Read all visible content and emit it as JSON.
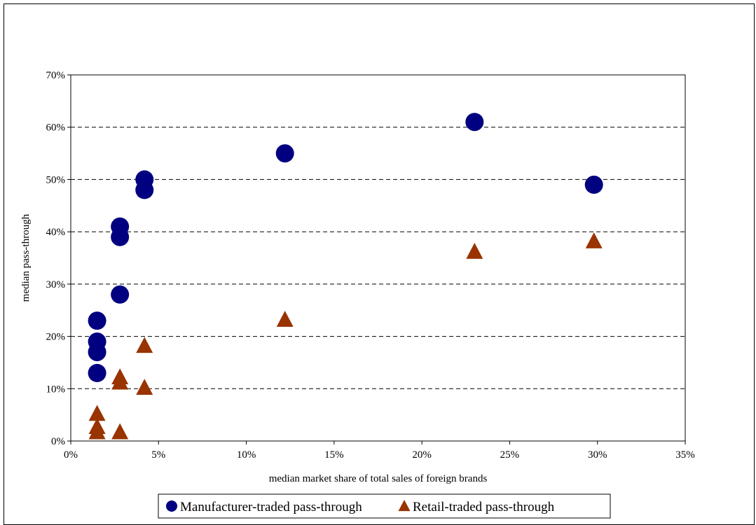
{
  "chart_data": {
    "type": "scatter",
    "title": "",
    "xlabel": "median market share of total sales of foreign brands",
    "ylabel": "median pass-through",
    "xlim": [
      0,
      35
    ],
    "ylim": [
      0,
      70
    ],
    "x_ticks": [
      "0%",
      "5%",
      "10%",
      "15%",
      "20%",
      "25%",
      "30%",
      "35%"
    ],
    "y_ticks": [
      "0%",
      "10%",
      "20%",
      "30%",
      "40%",
      "50%",
      "60%",
      "70%"
    ],
    "grid": "horizontal-dashed",
    "legend_position": "bottom",
    "series": [
      {
        "name": "Manufacturer-traded pass-through",
        "marker": "circle",
        "color": "#000080",
        "points": [
          {
            "x": 1.5,
            "y": 13
          },
          {
            "x": 1.5,
            "y": 17
          },
          {
            "x": 1.5,
            "y": 19
          },
          {
            "x": 1.5,
            "y": 23
          },
          {
            "x": 2.8,
            "y": 28
          },
          {
            "x": 2.8,
            "y": 39
          },
          {
            "x": 2.8,
            "y": 41
          },
          {
            "x": 4.2,
            "y": 48
          },
          {
            "x": 4.2,
            "y": 50
          },
          {
            "x": 12.2,
            "y": 55
          },
          {
            "x": 23.0,
            "y": 61
          },
          {
            "x": 29.8,
            "y": 49
          }
        ]
      },
      {
        "name": "Retail-traded pass-through",
        "marker": "triangle",
        "color": "#993300",
        "points": [
          {
            "x": 1.5,
            "y": 1.5
          },
          {
            "x": 1.5,
            "y": 2.5
          },
          {
            "x": 1.5,
            "y": 5
          },
          {
            "x": 2.8,
            "y": 1.5
          },
          {
            "x": 2.8,
            "y": 11
          },
          {
            "x": 2.8,
            "y": 12
          },
          {
            "x": 4.2,
            "y": 10
          },
          {
            "x": 4.2,
            "y": 18
          },
          {
            "x": 12.2,
            "y": 23
          },
          {
            "x": 23.0,
            "y": 36
          },
          {
            "x": 29.8,
            "y": 38
          }
        ]
      }
    ]
  }
}
